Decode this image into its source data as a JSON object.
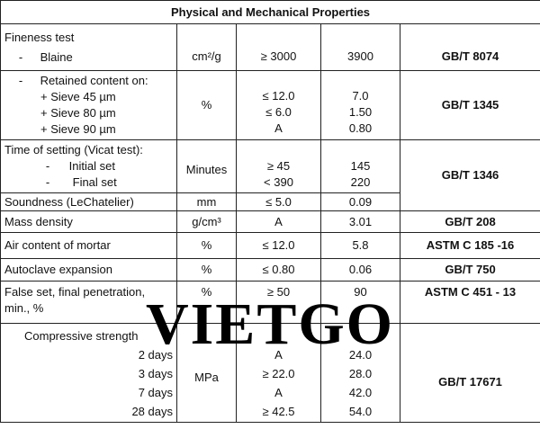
{
  "title": "Physical and Mechanical Properties",
  "rows": {
    "fineness": {
      "label": "Fineness test",
      "sub_dash": "-",
      "sub_label": "Blaine",
      "unit": "cm²/g",
      "requirement": "≥ 3000",
      "result": "3900",
      "standard": "GB/T 8074"
    },
    "retained": {
      "dash": "-",
      "label": "Retained content on:",
      "items": [
        "+ Sieve 45 µm",
        "+ Sieve 80 µm",
        "+ Sieve 90 µm"
      ],
      "unit": "%",
      "requirements": [
        "≤ 12.0",
        "≤ 6.0",
        "A"
      ],
      "results": [
        "7.0",
        "1.50",
        "0.80"
      ],
      "standard": "GB/T 1345"
    },
    "setting": {
      "label": "Time of setting (Vicat test):",
      "items": [
        {
          "dash": "-",
          "label": "Initial set"
        },
        {
          "dash": "-",
          "label": "Final set"
        }
      ],
      "unit": "Minutes",
      "requirements": [
        "≥ 45",
        "< 390"
      ],
      "results": [
        "145",
        "220"
      ],
      "standard": "GB/T 1346"
    },
    "soundness": {
      "label": "Soundness (LeChatelier)",
      "unit": "mm",
      "requirement": "≤ 5.0",
      "result": "0.09"
    },
    "density": {
      "label": "Mass density",
      "unit": "g/cm³",
      "requirement": "A",
      "result": "3.01",
      "standard": "GB/T 208"
    },
    "air": {
      "label": "Air content of mortar",
      "unit": "%",
      "requirement": "≤ 12.0",
      "result": "5.8",
      "standard": "ASTM C 185 -16"
    },
    "autoclave": {
      "label": "Autoclave expansion",
      "unit": "%",
      "requirement": "≤ 0.80",
      "result": "0.06",
      "standard": "GB/T 750"
    },
    "falseset": {
      "label_line1": "False set, final penetration,",
      "label_line2": "min., %",
      "unit": "%",
      "requirement": "≥ 50",
      "result": "90",
      "standard": "ASTM C 451 - 13"
    },
    "compressive": {
      "label": "Compressive strength",
      "days": [
        "2 days",
        "3 days",
        "7 days",
        "28 days"
      ],
      "unit": "MPa",
      "requirements": [
        "A",
        "≥ 22.0",
        "A",
        "≥ 42.5"
      ],
      "results": [
        "24.0",
        "28.0",
        "42.0",
        "54.0"
      ],
      "standard": "GB/T 17671"
    }
  },
  "watermark": "VIETGO"
}
